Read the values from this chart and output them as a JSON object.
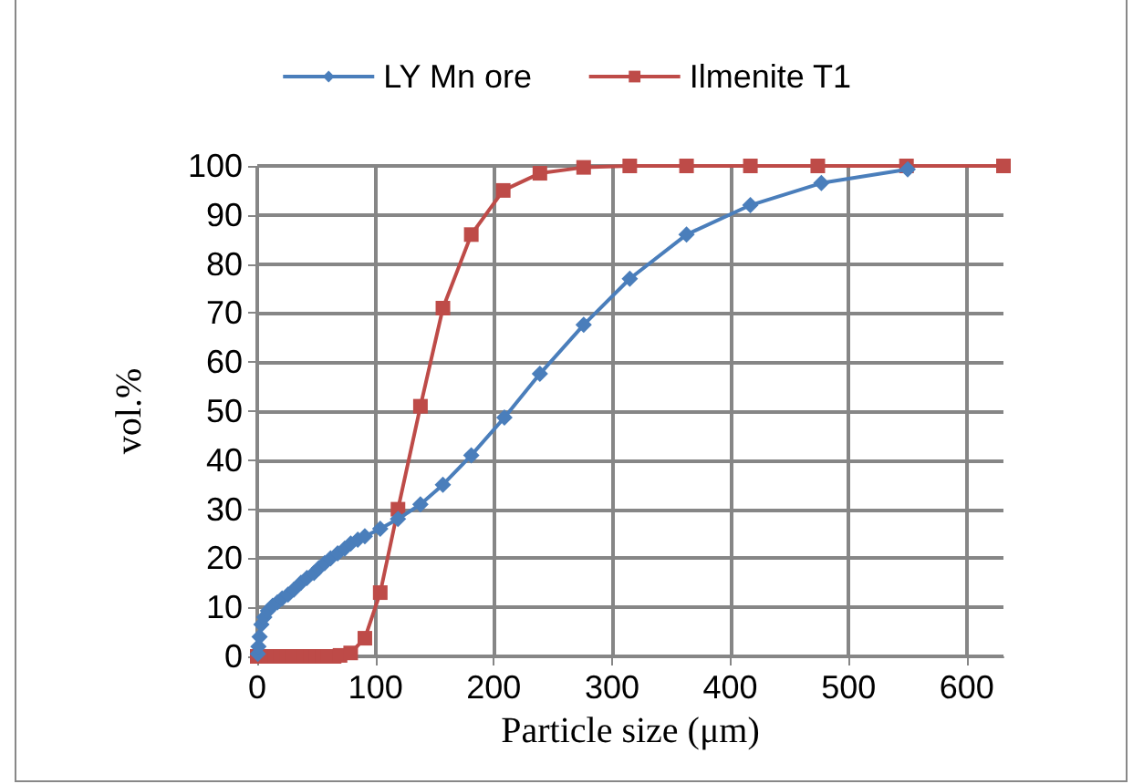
{
  "chart_data": {
    "type": "line",
    "xlabel": "Particle size (μm)",
    "ylabel": "vol.%",
    "xlim": [
      0,
      631
    ],
    "xticks": [
      0,
      100,
      200,
      300,
      400,
      500,
      600
    ],
    "ylim": [
      0,
      100
    ],
    "yticks": [
      0,
      10,
      20,
      30,
      40,
      50,
      60,
      70,
      80,
      90,
      100
    ],
    "grid": true,
    "legend": "top",
    "line_style": "solid",
    "series": [
      {
        "name": "LY Mn ore",
        "color": "#4a7ebb",
        "marker": "diamond",
        "x": [
          0.5,
          1,
          2,
          3.5,
          6,
          9,
          13,
          17,
          21,
          26,
          31,
          37,
          42,
          48,
          52,
          57,
          62,
          68,
          74,
          79,
          85,
          91,
          104,
          119,
          138,
          157,
          181,
          209,
          239,
          276,
          315,
          363,
          417,
          477,
          550
        ],
        "values": [
          0.5,
          2,
          4,
          6.5,
          8,
          9.3,
          10.3,
          11,
          11.8,
          12.6,
          13.6,
          15,
          16,
          17,
          18,
          19,
          20,
          21,
          22,
          23,
          23.8,
          24.5,
          26,
          28,
          31,
          35,
          41,
          48.7,
          57.6,
          67.6,
          77,
          86,
          92,
          96.5,
          99.3
        ]
      },
      {
        "name": "Ilmenite T1",
        "color": "#be4b48",
        "marker": "square",
        "x": [
          0,
          5,
          10,
          15,
          20,
          25,
          30,
          35,
          40,
          45,
          50,
          55,
          60,
          65,
          70,
          79,
          91,
          104,
          119,
          138,
          157,
          181,
          208,
          239,
          276,
          315,
          363,
          417,
          474,
          549,
          631
        ],
        "values": [
          0,
          0,
          0,
          0,
          0,
          0,
          0,
          0,
          0,
          0,
          0,
          0,
          0,
          0,
          0.2,
          0.7,
          3.7,
          13,
          30,
          51,
          71,
          86,
          95,
          98.5,
          99.7,
          100,
          100,
          100,
          100,
          100,
          100
        ]
      }
    ]
  }
}
